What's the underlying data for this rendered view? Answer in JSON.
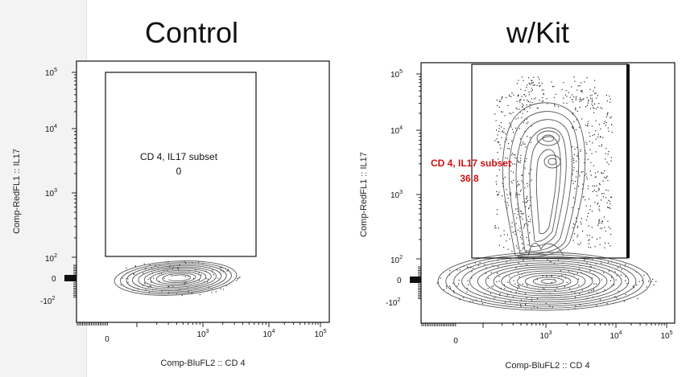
{
  "chart_data": [
    {
      "type": "contour",
      "title": "Control",
      "xlabel": "Comp-BluFL2 :: CD 4",
      "ylabel": "Comp-RedFL1 :: IL17",
      "x_ticks": [
        "0",
        "10^3",
        "10^4",
        "10^5"
      ],
      "y_ticks": [
        "10^5",
        "10^4",
        "10^3",
        "10^2",
        "0",
        "-10^2"
      ],
      "gate": {
        "name": "CD 4, IL17 subset",
        "value": "0",
        "label_color": "#111111"
      },
      "contour_color": "#555555"
    },
    {
      "type": "contour",
      "title": "w/Kit",
      "xlabel": "Comp-BluFL2 :: CD 4",
      "ylabel": "Comp-RedFL1 :: IL17",
      "x_ticks": [
        "0",
        "10^3",
        "10^4",
        "10^5"
      ],
      "y_ticks": [
        "10^5",
        "10^4",
        "10^3",
        "10^2",
        "0",
        "-10^2"
      ],
      "gate": {
        "name": "CD 4, IL17 subset",
        "value": "36.8",
        "label_color": "#cc1111"
      },
      "contour_color": "#555555"
    }
  ]
}
